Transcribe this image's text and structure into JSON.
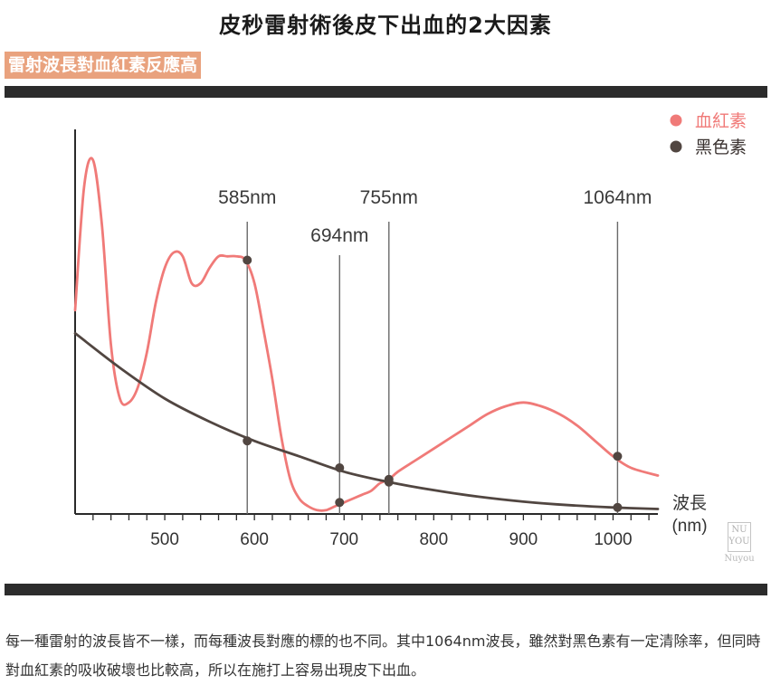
{
  "page": {
    "title": "皮秒雷射術後皮下出血的2大因素",
    "section_label": "雷射波長對血紅素反應高",
    "caption": "每一種雷射的波長皆不一樣，而每種波長對應的標的也不同。其中1064nm波長，雖然對黑色素有一定清除率，但同時對血紅素的吸收破壞也比較高，所以在施打上容易出現皮下出血。",
    "logo": {
      "top": "NU",
      "bottom": "YOU",
      "text": "Nuyou"
    }
  },
  "colors": {
    "hemoglobin": "#f07a78",
    "melanin": "#514641",
    "axis": "#2a2a2a",
    "marker_line": "#6a6a6a",
    "bar": "#2c2c2c",
    "section_label_bg": "#e9a27e"
  },
  "chart_data": {
    "type": "line",
    "x_ticks": [
      "500",
      "600",
      "700",
      "800",
      "900",
      "1000"
    ],
    "xlabel": "波長\n(nm)",
    "xlim": [
      400,
      1050
    ],
    "ylim": [
      0,
      1
    ],
    "legend": {
      "position": "top-right",
      "entries": [
        "血紅素",
        "黑色素"
      ]
    },
    "series": [
      {
        "name": "血紅素",
        "color": "#f07a78",
        "x": [
          400,
          410,
          420,
          430,
          440,
          450,
          460,
          470,
          480,
          490,
          500,
          510,
          520,
          530,
          540,
          550,
          560,
          570,
          580,
          590,
          600,
          610,
          620,
          630,
          640,
          650,
          660,
          670,
          680,
          690,
          700,
          710,
          720,
          730,
          740,
          750,
          760,
          780,
          800,
          820,
          840,
          860,
          880,
          900,
          920,
          940,
          960,
          980,
          1000,
          1020,
          1050
        ],
        "y": [
          0.53,
          0.85,
          0.92,
          0.75,
          0.44,
          0.3,
          0.29,
          0.33,
          0.42,
          0.55,
          0.64,
          0.68,
          0.67,
          0.6,
          0.6,
          0.64,
          0.67,
          0.67,
          0.67,
          0.66,
          0.6,
          0.48,
          0.35,
          0.2,
          0.09,
          0.04,
          0.02,
          0.01,
          0.01,
          0.02,
          0.03,
          0.04,
          0.05,
          0.06,
          0.08,
          0.09,
          0.11,
          0.14,
          0.17,
          0.2,
          0.23,
          0.26,
          0.28,
          0.29,
          0.28,
          0.26,
          0.23,
          0.19,
          0.15,
          0.12,
          0.1
        ]
      },
      {
        "name": "黑色素",
        "color": "#514641",
        "x": [
          400,
          450,
          500,
          550,
          600,
          650,
          700,
          750,
          800,
          850,
          900,
          950,
          1000,
          1050
        ],
        "y": [
          0.47,
          0.38,
          0.3,
          0.24,
          0.19,
          0.15,
          0.11,
          0.083,
          0.062,
          0.045,
          0.032,
          0.023,
          0.017,
          0.013
        ]
      }
    ],
    "markers": [
      {
        "label": "585nm",
        "x": 592,
        "points": [
          {
            "series": 0,
            "y": 0.66
          },
          {
            "series": 1,
            "y": 0.19
          }
        ]
      },
      {
        "label": "694nm",
        "x": 695,
        "points": [
          {
            "series": 0,
            "y": 0.03
          },
          {
            "series": 1,
            "y": 0.12
          }
        ]
      },
      {
        "label": "755nm",
        "x": 750,
        "points": [
          {
            "series": 0,
            "y": 0.09
          },
          {
            "series": 1,
            "y": 0.083
          }
        ]
      },
      {
        "label": "1064nm",
        "x": 1005,
        "points": [
          {
            "series": 0,
            "y": 0.15
          },
          {
            "series": 1,
            "y": 0.017
          }
        ]
      }
    ]
  }
}
